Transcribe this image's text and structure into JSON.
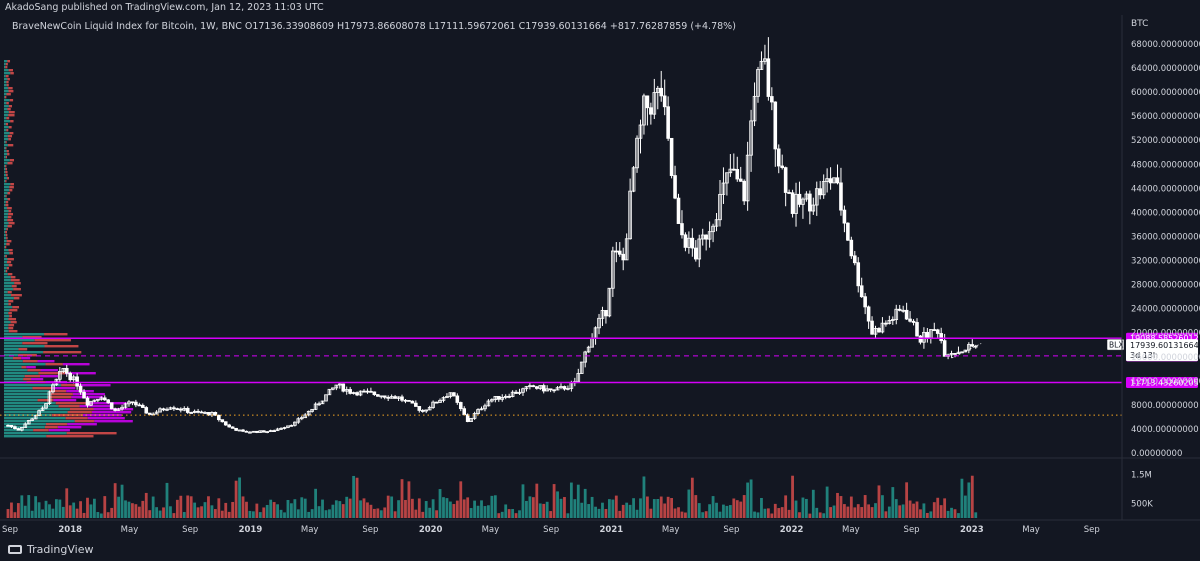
{
  "header": {
    "published": "AkadoSang published on TradingView.com, Jan 12, 2023 11:03 UTC",
    "legend": "BraveNewCoin Liquid Index for Bitcoin, 1W, BNC  O17136.33908609  H17973.86608078  L17111.59672061  C17939.60131664  +817.76287859 (+4.78%)",
    "unit": "BTC"
  },
  "footer": {
    "brand": "TradingView"
  },
  "chart_data": {
    "type": "candlestick",
    "symbol": "BLX",
    "interval": "1W",
    "ylim": [
      0,
      69000
    ],
    "y_ticks": [
      "0.00000000",
      "4000.00000000",
      "8000.00000000",
      "12000.00000000",
      "16000.00000000",
      "20000.00000000",
      "24000.00000000",
      "28000.00000000",
      "32000.00000000",
      "36000.00000000",
      "40000.00000000",
      "44000.00000000",
      "48000.00000000",
      "52000.00000000",
      "56000.00000000",
      "60000.00000000",
      "64000.00000000",
      "68000.00000000"
    ],
    "y_tick_values": [
      0,
      4000,
      8000,
      12000,
      16000,
      20000,
      24000,
      28000,
      32000,
      36000,
      40000,
      44000,
      48000,
      52000,
      56000,
      60000,
      64000,
      68000
    ],
    "x_ticks": [
      "Sep",
      "2018",
      "May",
      "Sep",
      "2019",
      "May",
      "Sep",
      "2020",
      "May",
      "Sep",
      "2021",
      "May",
      "Sep",
      "2022",
      "May",
      "Sep",
      "2023",
      "May",
      "Sep"
    ],
    "x_tick_dates": [
      "2017-09-01",
      "2018-01-01",
      "2018-05-01",
      "2018-09-01",
      "2019-01-01",
      "2019-05-01",
      "2019-09-01",
      "2020-01-01",
      "2020-05-01",
      "2020-09-01",
      "2021-01-01",
      "2021-05-01",
      "2021-09-01",
      "2022-01-01",
      "2022-05-01",
      "2022-09-01",
      "2023-01-01",
      "2023-05-01",
      "2023-09-01"
    ],
    "close_series": {
      "dates": [
        "2017-08-28",
        "2017-09-18",
        "2017-10-16",
        "2017-11-06",
        "2017-11-27",
        "2017-12-18",
        "2018-01-15",
        "2018-02-05",
        "2018-03-05",
        "2018-04-02",
        "2018-05-07",
        "2018-06-11",
        "2018-07-23",
        "2018-09-03",
        "2018-10-15",
        "2018-11-19",
        "2018-12-17",
        "2019-02-11",
        "2019-04-01",
        "2019-05-13",
        "2019-06-24",
        "2019-07-22",
        "2019-09-02",
        "2019-10-28",
        "2019-12-16",
        "2020-02-10",
        "2020-03-16",
        "2020-04-27",
        "2020-06-01",
        "2020-07-27",
        "2020-09-07",
        "2020-10-19",
        "2020-11-16",
        "2020-12-21",
        "2021-01-04",
        "2021-01-25",
        "2021-02-15",
        "2021-03-08",
        "2021-04-12",
        "2021-05-17",
        "2021-06-21",
        "2021-07-26",
        "2021-08-30",
        "2021-09-27",
        "2021-10-18",
        "2021-11-08",
        "2021-12-06",
        "2022-01-03",
        "2022-02-07",
        "2022-03-28",
        "2022-05-09",
        "2022-06-13",
        "2022-07-18",
        "2022-08-15",
        "2022-09-19",
        "2022-10-24",
        "2022-11-07",
        "2022-12-05",
        "2023-01-09"
      ],
      "values": [
        4600,
        3900,
        5800,
        7300,
        11000,
        14000,
        11500,
        8300,
        9500,
        7000,
        8500,
        6400,
        7800,
        6800,
        6500,
        4300,
        3500,
        3600,
        5000,
        7800,
        11300,
        10200,
        9900,
        9200,
        7000,
        10100,
        5300,
        8700,
        9600,
        11000,
        10300,
        11500,
        18300,
        23800,
        33000,
        32000,
        47000,
        57000,
        60000,
        37000,
        33000,
        39000,
        47000,
        43000,
        61000,
        64000,
        49000,
        41000,
        42000,
        46000,
        31000,
        20000,
        22000,
        24000,
        19000,
        20600,
        16800,
        17000,
        17940
      ]
    },
    "horizontal_levels": [
      {
        "value": 19088.58526012,
        "label": "19088.58526012",
        "style": "solid",
        "color": "#d500f9"
      },
      {
        "value": 16138.52419689,
        "label": "16138.52419689",
        "style": "dashed",
        "color": "#d500f9"
      },
      {
        "value": 11713.43260205,
        "label": "11713.43260205",
        "style": "solid",
        "color": "#d500f9"
      },
      {
        "value": 6300,
        "label": "",
        "style": "dotted",
        "color": "#f5a623"
      }
    ],
    "price_label": {
      "symbol": "BLX",
      "value": "17939.60131664",
      "countdown": "3d 13h"
    },
    "volume": {
      "y_ticks": [
        "1.5M",
        "500K"
      ],
      "y_tick_values": [
        1500000,
        500000
      ]
    },
    "colors": {
      "background": "#131722",
      "candle": "#ffffff",
      "level": "#d500f9",
      "dotted_level": "#f5a623",
      "volume_up": "#26a69a",
      "volume_down": "#ef5350",
      "vp_up": "#26a69a",
      "vp_down": "#ef5350",
      "vp_highlight": "#d500f9",
      "text": "#d1d4dc"
    }
  }
}
